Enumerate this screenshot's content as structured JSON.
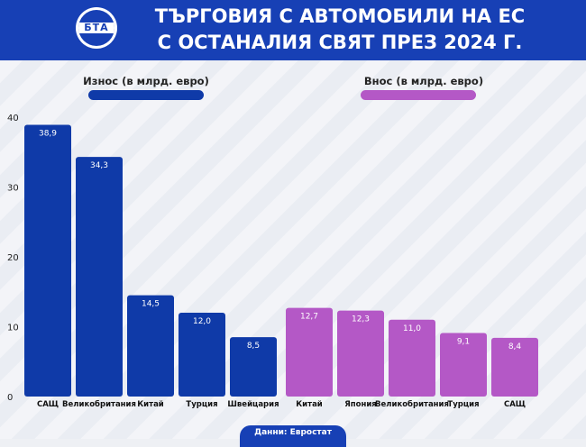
{
  "header": {
    "logo_text": "БТА",
    "title_line1": "ТЪРГОВИЯ С АВТОМОБИЛИ НА ЕС",
    "title_line2": "С ОСТАНАЛИЯ СВЯТ ПРЕЗ 2024 Г."
  },
  "legend": {
    "export_label": "Износ (в млрд. евро)",
    "import_label": "Внос (в млрд. евро)"
  },
  "source": "Данни: Евростат",
  "colors": {
    "header": "#1740b5",
    "export": "#0f3aa8",
    "import": "#b458c6"
  },
  "chart_data": {
    "type": "bar",
    "title": "ТЪРГОВИЯ С АВТОМОБИЛИ НА ЕС С ОСТАНАЛИЯ СВЯТ ПРЕЗ 2024 Г.",
    "ylim": [
      0,
      40
    ],
    "yticks": [
      0,
      10,
      20,
      30,
      40
    ],
    "grid": false,
    "series": [
      {
        "name": "Износ (в млрд. евро)",
        "categories": [
          "САЩ",
          "Великобритания",
          "Китай",
          "Турция",
          "Швейцария"
        ],
        "values": [
          38.9,
          34.3,
          14.5,
          12.0,
          8.5
        ],
        "labels": [
          "38,9",
          "34,3",
          "14,5",
          "12,0",
          "8,5"
        ]
      },
      {
        "name": "Внос (в млрд. евро)",
        "categories": [
          "Китай",
          "Япония",
          "Великобритания",
          "Турция",
          "САЩ"
        ],
        "values": [
          12.7,
          12.3,
          11.0,
          9.1,
          8.4
        ],
        "labels": [
          "12,7",
          "12,3",
          "11,0",
          "9,1",
          "8,4"
        ]
      }
    ]
  }
}
